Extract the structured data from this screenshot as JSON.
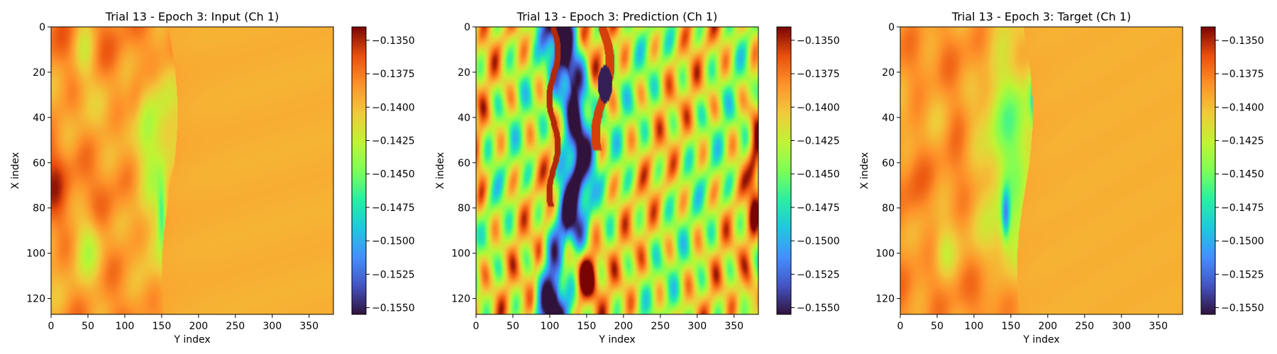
{
  "chart_data": [
    {
      "type": "heatmap",
      "title": "Trial 13 - Epoch 3: Input (Ch 1)",
      "xlabel": "Y index",
      "ylabel": "X index",
      "xticks": [
        0,
        50,
        100,
        150,
        200,
        250,
        300,
        350
      ],
      "yticks": [
        0,
        20,
        40,
        60,
        80,
        100,
        120
      ],
      "xlim": [
        0,
        383
      ],
      "ylim": [
        127,
        0
      ],
      "colormap": "turbo",
      "colorbar": {
        "vmin": -0.1555,
        "vmax": -0.134,
        "ticks": [
          -0.135,
          -0.1375,
          -0.14,
          -0.1425,
          -0.145,
          -0.1475,
          -0.15,
          -0.1525,
          -0.155
        ]
      },
      "field": "input"
    },
    {
      "type": "heatmap",
      "title": "Trial 13 - Epoch 3: Prediction (Ch 1)",
      "xlabel": "Y index",
      "ylabel": "X index",
      "xticks": [
        0,
        50,
        100,
        150,
        200,
        250,
        300,
        350
      ],
      "yticks": [
        0,
        20,
        40,
        60,
        80,
        100,
        120
      ],
      "xlim": [
        0,
        383
      ],
      "ylim": [
        127,
        0
      ],
      "colormap": "turbo",
      "colorbar": {
        "vmin": -0.1555,
        "vmax": -0.134,
        "ticks": [
          -0.135,
          -0.1375,
          -0.14,
          -0.1425,
          -0.145,
          -0.1475,
          -0.15,
          -0.1525,
          -0.155
        ]
      },
      "field": "prediction"
    },
    {
      "type": "heatmap",
      "title": "Trial 13 - Epoch 3: Target (Ch 1)",
      "xlabel": "Y index",
      "ylabel": "X index",
      "xticks": [
        0,
        50,
        100,
        150,
        200,
        250,
        300,
        350
      ],
      "yticks": [
        0,
        20,
        40,
        60,
        80,
        100,
        120
      ],
      "xlim": [
        0,
        383
      ],
      "ylim": [
        127,
        0
      ],
      "colormap": "turbo",
      "colorbar": {
        "vmin": -0.1555,
        "vmax": -0.134,
        "ticks": [
          -0.135,
          -0.1375,
          -0.14,
          -0.1425,
          -0.145,
          -0.1475,
          -0.15,
          -0.1525,
          -0.155
        ]
      },
      "field": "target"
    }
  ]
}
